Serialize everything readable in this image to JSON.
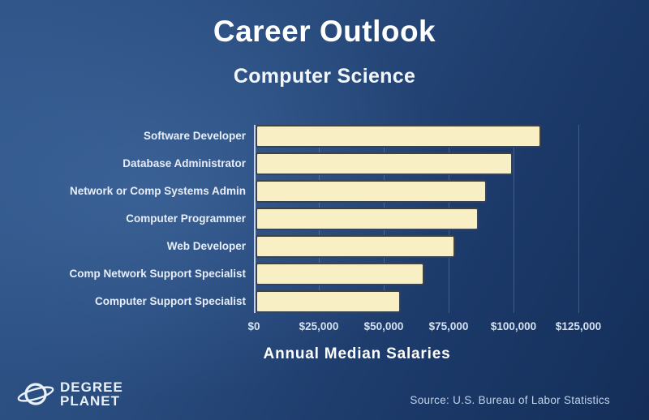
{
  "header": {
    "title": "Career Outlook",
    "subtitle": "Computer Science"
  },
  "chart_data": {
    "type": "bar",
    "orientation": "horizontal",
    "title": "Career Outlook",
    "subtitle": "Computer Science",
    "categories": [
      "Software Developer",
      "Database Administrator",
      "Network or Comp Systems Admin",
      "Computer Programmer",
      "Web Developer",
      "Comp Network Support Specialist",
      "Computer Support Specialist"
    ],
    "values": [
      110000,
      99000,
      89000,
      86000,
      77000,
      65000,
      56000
    ],
    "xlabel": "Annual Median Salaries",
    "ylabel": "",
    "x_ticks": [
      "$0",
      "$25,000",
      "$50,000",
      "$75,000",
      "$100,000",
      "$125,000"
    ],
    "x_tick_values": [
      0,
      25000,
      50000,
      75000,
      100000,
      125000
    ],
    "xlim": [
      0,
      140000
    ],
    "grid": true,
    "legend": false,
    "bar_color": "#f8f0c4",
    "bar_border_color": "#39424d"
  },
  "footer": {
    "logo_line1": "DEGREE",
    "logo_line2": "PLANET",
    "source": "Source: U.S. Bureau of Labor Statistics"
  },
  "colors": {
    "background_top_left": "#30568a",
    "background_bottom_right": "#142e58",
    "text_primary": "#ffffff",
    "text_secondary": "#d4e1f3"
  }
}
